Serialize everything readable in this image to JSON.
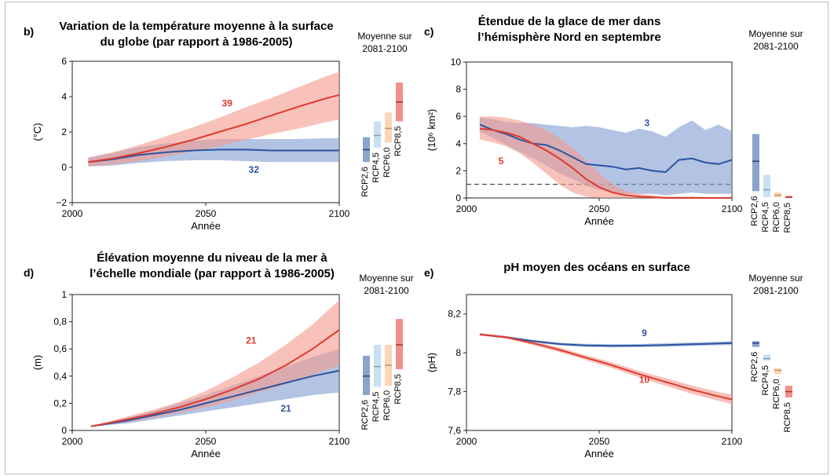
{
  "colors": {
    "rcp26": "#2c55a0",
    "rcp26_band": "#7f9bd0",
    "rcp45": "#9cc6e6",
    "rcp60": "#f6b27c",
    "rcp85": "#e03a2e",
    "rcp85_band": "#f39a8c",
    "overlap": "#c8a8b8"
  },
  "side_title": [
    "Moyenne sur",
    "2081-2100"
  ],
  "scenario_labels": [
    "RCP2,6",
    "RCP4,5",
    "RCP6,0",
    "RCP8,5"
  ],
  "chart_data": [
    {
      "panel": "b)",
      "type": "area",
      "title": [
        "Variation de la température moyenne à la surface",
        "du globe (par rapport à 1986-2005)"
      ],
      "xlabel": "Année",
      "ylabel": "(°C)",
      "xlim": [
        2000,
        2100
      ],
      "ylim": [
        -2,
        6
      ],
      "xticks": [
        2000,
        2050,
        2100
      ],
      "yticks": [
        -2,
        0,
        2,
        4,
        6
      ],
      "ytick_labels": [
        "−2",
        "0",
        "2",
        "4",
        "6"
      ],
      "hline": null,
      "series": [
        {
          "name": "RCP2,6",
          "color_key": "rcp26",
          "x": [
            2006,
            2015,
            2025,
            2035,
            2045,
            2055,
            2065,
            2075,
            2085,
            2095,
            2100
          ],
          "y": [
            0.3,
            0.45,
            0.7,
            0.85,
            0.95,
            1.0,
            1.0,
            0.95,
            0.95,
            0.95,
            0.95
          ],
          "low": [
            0.05,
            0.1,
            0.25,
            0.35,
            0.4,
            0.4,
            0.35,
            0.3,
            0.3,
            0.3,
            0.3
          ],
          "high": [
            0.55,
            0.8,
            1.15,
            1.35,
            1.5,
            1.6,
            1.6,
            1.6,
            1.6,
            1.65,
            1.65
          ],
          "count": "32",
          "count_pos": [
            2068,
            -0.3
          ]
        },
        {
          "name": "RCP8,5",
          "color_key": "rcp85",
          "x": [
            2006,
            2015,
            2025,
            2035,
            2045,
            2055,
            2065,
            2075,
            2085,
            2095,
            2100
          ],
          "y": [
            0.3,
            0.5,
            0.8,
            1.15,
            1.55,
            2.0,
            2.45,
            2.95,
            3.45,
            3.9,
            4.1
          ],
          "low": [
            0.05,
            0.15,
            0.35,
            0.6,
            0.9,
            1.2,
            1.55,
            1.9,
            2.2,
            2.55,
            2.7
          ],
          "high": [
            0.55,
            0.85,
            1.25,
            1.75,
            2.25,
            2.8,
            3.4,
            3.95,
            4.55,
            5.15,
            5.4
          ],
          "count": "39",
          "count_pos": [
            2058,
            3.45
          ]
        }
      ],
      "bars": [
        {
          "label": "RCP2,6",
          "color_key": "rcp26",
          "low": 0.3,
          "high": 1.7,
          "mean": 1.0
        },
        {
          "label": "RCP4,5",
          "color_key": "rcp45",
          "low": 1.1,
          "high": 2.6,
          "mean": 1.8
        },
        {
          "label": "RCP6,0",
          "color_key": "rcp60",
          "low": 1.4,
          "high": 3.1,
          "mean": 2.2
        },
        {
          "label": "RCP8,5",
          "color_key": "rcp85",
          "low": 2.6,
          "high": 4.8,
          "mean": 3.7
        }
      ]
    },
    {
      "panel": "c)",
      "type": "area",
      "title": [
        "Étendue de la glace de mer dans",
        "l’hémisphère Nord en septembre"
      ],
      "xlabel": "Année",
      "ylabel": "(10⁶ km²)",
      "xlim": [
        2000,
        2100
      ],
      "ylim": [
        0,
        10
      ],
      "xticks": [
        2000,
        2050,
        2100
      ],
      "yticks": [
        0,
        2,
        4,
        6,
        8,
        10
      ],
      "ytick_labels": [
        "0",
        "2",
        "4",
        "6",
        "8",
        "10"
      ],
      "hline": 1,
      "series": [
        {
          "name": "RCP2,6",
          "color_key": "rcp26",
          "x": [
            2005,
            2010,
            2015,
            2020,
            2025,
            2030,
            2035,
            2040,
            2045,
            2050,
            2055,
            2060,
            2065,
            2070,
            2075,
            2080,
            2085,
            2090,
            2095,
            2100
          ],
          "y": [
            5.4,
            5.0,
            4.7,
            4.3,
            4.0,
            3.9,
            3.5,
            3.0,
            2.5,
            2.4,
            2.3,
            2.1,
            2.2,
            2.0,
            1.9,
            2.8,
            2.9,
            2.6,
            2.5,
            2.8
          ],
          "low": [
            4.9,
            4.4,
            3.9,
            3.4,
            2.9,
            2.4,
            1.8,
            1.4,
            0.9,
            0.6,
            0.4,
            0.3,
            0.3,
            0.3,
            0.2,
            0.3,
            0.4,
            0.3,
            0.3,
            0.3
          ],
          "high": [
            5.9,
            5.8,
            5.6,
            5.5,
            5.5,
            5.4,
            5.3,
            5.2,
            5.3,
            5.2,
            5.0,
            4.8,
            5.1,
            4.9,
            4.5,
            5.2,
            5.7,
            5.0,
            5.4,
            4.9
          ],
          "count": "3",
          "count_pos": [
            2068,
            5.3
          ]
        },
        {
          "name": "RCP8,5",
          "color_key": "rcp85",
          "x": [
            2005,
            2010,
            2015,
            2020,
            2025,
            2030,
            2035,
            2040,
            2045,
            2050,
            2055,
            2060,
            2065,
            2070,
            2075,
            2080,
            2085,
            2090,
            2095,
            2100
          ],
          "y": [
            5.1,
            5.0,
            4.8,
            4.5,
            4.0,
            3.5,
            2.9,
            2.2,
            1.4,
            0.8,
            0.4,
            0.2,
            0.1,
            0.05,
            0.0,
            0.0,
            0.0,
            0.0,
            0.0,
            0.0
          ],
          "low": [
            4.3,
            4.1,
            3.8,
            3.3,
            2.6,
            1.8,
            1.0,
            0.4,
            0.1,
            0.0,
            0.0,
            0.0,
            0.0,
            0.0,
            0.0,
            0.0,
            0.0,
            0.0,
            0.0,
            0.0
          ],
          "high": [
            6.0,
            6.0,
            5.9,
            5.7,
            5.4,
            5.0,
            4.4,
            3.7,
            2.8,
            1.8,
            1.0,
            0.5,
            0.3,
            0.2,
            0.1,
            0.1,
            0.1,
            0.05,
            0.05,
            0.05
          ],
          "count": "5",
          "count_pos": [
            2013,
            2.5
          ]
        }
      ],
      "bars": [
        {
          "label": "RCP2,6",
          "color_key": "rcp26",
          "low": 0.5,
          "high": 4.7,
          "mean": 2.7
        },
        {
          "label": "RCP4,5",
          "color_key": "rcp45",
          "low": 0.05,
          "high": 1.7,
          "mean": 0.6
        },
        {
          "label": "RCP6,0",
          "color_key": "rcp60",
          "low": 0.05,
          "high": 0.4,
          "mean": 0.2
        },
        {
          "label": "RCP8,5",
          "color_key": "rcp85",
          "low": 0.0,
          "high": 0.15,
          "mean": 0.05
        }
      ]
    },
    {
      "panel": "d)",
      "type": "area",
      "title": [
        "Élévation moyenne du niveau de la mer à",
        "l’échelle mondiale (par rapport à 1986-2005)"
      ],
      "xlabel": "Année",
      "ylabel": "(m)",
      "xlim": [
        2000,
        2100
      ],
      "ylim": [
        0,
        1
      ],
      "xticks": [
        2000,
        2050,
        2100
      ],
      "yticks": [
        0,
        0.2,
        0.4,
        0.6,
        0.8,
        1
      ],
      "ytick_labels": [
        "0",
        "0,2",
        "0,4",
        "0,6",
        "0,8",
        "1"
      ],
      "hline": null,
      "series": [
        {
          "name": "RCP2,6",
          "color_key": "rcp26",
          "x": [
            2007,
            2020,
            2030,
            2040,
            2050,
            2060,
            2070,
            2080,
            2090,
            2100
          ],
          "y": [
            0.03,
            0.07,
            0.11,
            0.15,
            0.2,
            0.25,
            0.3,
            0.35,
            0.4,
            0.44
          ],
          "low": [
            0.03,
            0.05,
            0.08,
            0.11,
            0.14,
            0.17,
            0.2,
            0.23,
            0.26,
            0.28
          ],
          "high": [
            0.03,
            0.09,
            0.14,
            0.2,
            0.26,
            0.33,
            0.4,
            0.47,
            0.54,
            0.6
          ],
          "count": "21",
          "count_pos": [
            2080,
            0.14
          ]
        },
        {
          "name": "RCP8,5",
          "color_key": "rcp85",
          "x": [
            2007,
            2020,
            2030,
            2040,
            2050,
            2060,
            2070,
            2080,
            2090,
            2100
          ],
          "y": [
            0.03,
            0.08,
            0.12,
            0.17,
            0.23,
            0.3,
            0.38,
            0.48,
            0.6,
            0.74
          ],
          "low": [
            0.03,
            0.06,
            0.09,
            0.13,
            0.17,
            0.22,
            0.28,
            0.34,
            0.41,
            0.48
          ],
          "high": [
            0.03,
            0.1,
            0.15,
            0.21,
            0.29,
            0.39,
            0.5,
            0.63,
            0.78,
            0.96
          ],
          "count": "21",
          "count_pos": [
            2067,
            0.64
          ]
        }
      ],
      "bars": [
        {
          "label": "RCP2,6",
          "color_key": "rcp26",
          "low": 0.26,
          "high": 0.55,
          "mean": 0.4
        },
        {
          "label": "RCP4,5",
          "color_key": "rcp45",
          "low": 0.32,
          "high": 0.63,
          "mean": 0.47
        },
        {
          "label": "RCP6,0",
          "color_key": "rcp60",
          "low": 0.33,
          "high": 0.63,
          "mean": 0.48
        },
        {
          "label": "RCP8,5",
          "color_key": "rcp85",
          "low": 0.45,
          "high": 0.82,
          "mean": 0.63
        }
      ]
    },
    {
      "panel": "e)",
      "type": "area",
      "title": [
        "pH moyen des océans en surface"
      ],
      "xlabel": "Année",
      "ylabel": "(pH)",
      "xlim": [
        2000,
        2100
      ],
      "ylim": [
        7.6,
        8.3
      ],
      "xticks": [
        2000,
        2050,
        2100
      ],
      "yticks": [
        7.6,
        7.8,
        8.0,
        8.2
      ],
      "ytick_labels": [
        "7,6",
        "7,8",
        "8",
        "8,2"
      ],
      "hline": null,
      "series": [
        {
          "name": "RCP2,6",
          "color_key": "rcp26",
          "x": [
            2005,
            2015,
            2025,
            2035,
            2045,
            2055,
            2065,
            2075,
            2085,
            2095,
            2100
          ],
          "y": [
            8.095,
            8.08,
            8.06,
            8.045,
            8.038,
            8.036,
            8.037,
            8.04,
            8.044,
            8.048,
            8.05
          ],
          "low": [
            8.09,
            8.075,
            8.054,
            8.038,
            8.03,
            8.028,
            8.029,
            8.031,
            8.035,
            8.039,
            8.04
          ],
          "high": [
            8.1,
            8.085,
            8.066,
            8.052,
            8.046,
            8.044,
            8.045,
            8.049,
            8.053,
            8.057,
            8.06
          ],
          "count": "9",
          "count_pos": [
            2067,
            8.085
          ]
        },
        {
          "name": "RCP8,5",
          "color_key": "rcp85",
          "x": [
            2005,
            2015,
            2025,
            2035,
            2045,
            2055,
            2065,
            2075,
            2085,
            2095,
            2100
          ],
          "y": [
            8.095,
            8.08,
            8.05,
            8.015,
            7.975,
            7.935,
            7.89,
            7.85,
            7.81,
            7.775,
            7.76
          ],
          "low": [
            8.09,
            8.073,
            8.04,
            8.003,
            7.962,
            7.92,
            7.873,
            7.83,
            7.788,
            7.752,
            7.735
          ],
          "high": [
            8.1,
            8.087,
            8.06,
            8.027,
            7.988,
            7.95,
            7.907,
            7.87,
            7.832,
            7.798,
            7.785
          ],
          "count": "10",
          "count_pos": [
            2067,
            7.845
          ]
        }
      ],
      "bars": [
        {
          "label": "RCP2,6",
          "color_key": "rcp26",
          "low": 8.03,
          "high": 8.06,
          "mean": 8.05
        },
        {
          "label": "RCP4,5",
          "color_key": "rcp45",
          "low": 7.96,
          "high": 7.99,
          "mean": 7.97
        },
        {
          "label": "RCP6,0",
          "color_key": "rcp60",
          "low": 7.89,
          "high": 7.92,
          "mean": 7.91
        },
        {
          "label": "RCP8,5",
          "color_key": "rcp85",
          "low": 7.77,
          "high": 7.83,
          "mean": 7.8
        }
      ]
    }
  ]
}
